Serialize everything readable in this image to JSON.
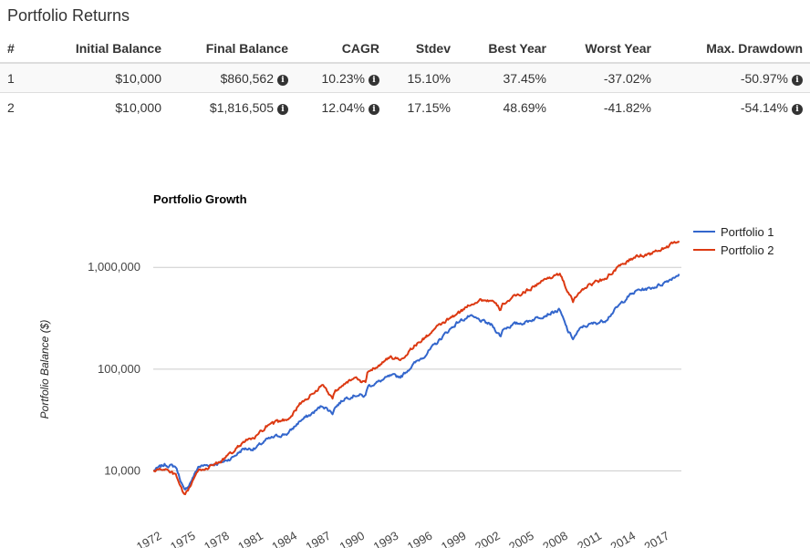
{
  "page": {
    "title": "Portfolio Returns"
  },
  "table": {
    "headers": [
      "#",
      "Initial Balance",
      "Final Balance",
      "CAGR",
      "Stdev",
      "Best Year",
      "Worst Year",
      "Max. Drawdown"
    ],
    "rows": [
      {
        "id": "1",
        "initial_balance": "$10,000",
        "final_balance": "$860,562",
        "cagr": "10.23%",
        "stdev": "15.10%",
        "best_year": "37.45%",
        "worst_year": "-37.02%",
        "max_drawdown": "-50.97%"
      },
      {
        "id": "2",
        "initial_balance": "$10,000",
        "final_balance": "$1,816,505",
        "cagr": "12.04%",
        "stdev": "17.15%",
        "best_year": "48.69%",
        "worst_year": "-41.82%",
        "max_drawdown": "-54.14%"
      }
    ],
    "info_icon": "info-circle-icon"
  },
  "chart_data": {
    "type": "line",
    "title": "Portfolio Growth",
    "xlabel": "",
    "ylabel": "Portfolio Balance ($)",
    "yscale": "log",
    "ylim": [
      5000,
      3000000
    ],
    "xlim": [
      1972,
      2018.8
    ],
    "yticks": [
      10000,
      100000,
      1000000
    ],
    "ytick_labels": [
      "10,000",
      "100,000",
      "1,000,000"
    ],
    "xticks": [
      "1972",
      "1975",
      "1978",
      "1981",
      "1984",
      "1987",
      "1990",
      "1993",
      "1996",
      "1999",
      "2002",
      "2005",
      "2008",
      "2011",
      "2014",
      "2017"
    ],
    "grid": true,
    "legend_position": "top-right",
    "series": [
      {
        "name": "Portfolio 1",
        "color": "#3366cc",
        "x": [
          1972,
          1973,
          1974,
          1974.8,
          1975.5,
          1976,
          1977,
          1978,
          1979,
          1980,
          1981,
          1982,
          1983,
          1984,
          1985,
          1986,
          1987,
          1987.9,
          1988,
          1989,
          1990,
          1990.8,
          1991,
          1992,
          1993,
          1994,
          1995,
          1996,
          1997,
          1998,
          1999,
          2000,
          2001,
          2002,
          2002.8,
          2003,
          2004,
          2005,
          2006,
          2007,
          2008,
          2008.8,
          2009.2,
          2010,
          2011,
          2012,
          2013,
          2014,
          2015,
          2016,
          2017,
          2018.6
        ],
        "y": [
          10000,
          11500,
          11000,
          6200,
          8500,
          11000,
          11500,
          12000,
          13500,
          16500,
          16500,
          20000,
          22000,
          23500,
          31000,
          36000,
          44000,
          37000,
          41000,
          52000,
          56000,
          54000,
          68000,
          75000,
          85000,
          85000,
          110000,
          135000,
          175000,
          230000,
          290000,
          330000,
          300000,
          270000,
          210000,
          250000,
          275000,
          290000,
          320000,
          350000,
          380000,
          230000,
          200000,
          260000,
          280000,
          300000,
          390000,
          510000,
          600000,
          620000,
          680000,
          860562
        ]
      },
      {
        "name": "Portfolio 2",
        "color": "#dc3912",
        "x": [
          1972,
          1973,
          1974,
          1974.8,
          1975.5,
          1976,
          1977,
          1978,
          1979,
          1980,
          1981,
          1982,
          1983,
          1984,
          1985,
          1986,
          1987,
          1987.9,
          1988,
          1989,
          1990,
          1990.8,
          1991,
          1992,
          1993,
          1994,
          1995,
          1996,
          1997,
          1998,
          1999,
          2000,
          2001,
          2002,
          2002.8,
          2003,
          2004,
          2005,
          2006,
          2007,
          2008,
          2008.8,
          2009.2,
          2010,
          2011,
          2012,
          2013,
          2014,
          2015,
          2016,
          2017,
          2018.6
        ],
        "y": [
          10000,
          10500,
          9000,
          5500,
          8000,
          10000,
          11000,
          12500,
          15000,
          19500,
          21000,
          27000,
          30000,
          33000,
          45000,
          56000,
          70000,
          52000,
          59000,
          75000,
          80000,
          72000,
          95000,
          110000,
          130000,
          125000,
          165000,
          200000,
          250000,
          300000,
          350000,
          430000,
          480000,
          470000,
          380000,
          440000,
          510000,
          580000,
          680000,
          790000,
          870000,
          560000,
          460000,
          620000,
          700000,
          780000,
          950000,
          1150000,
          1300000,
          1350000,
          1500000,
          1816505
        ]
      }
    ]
  }
}
